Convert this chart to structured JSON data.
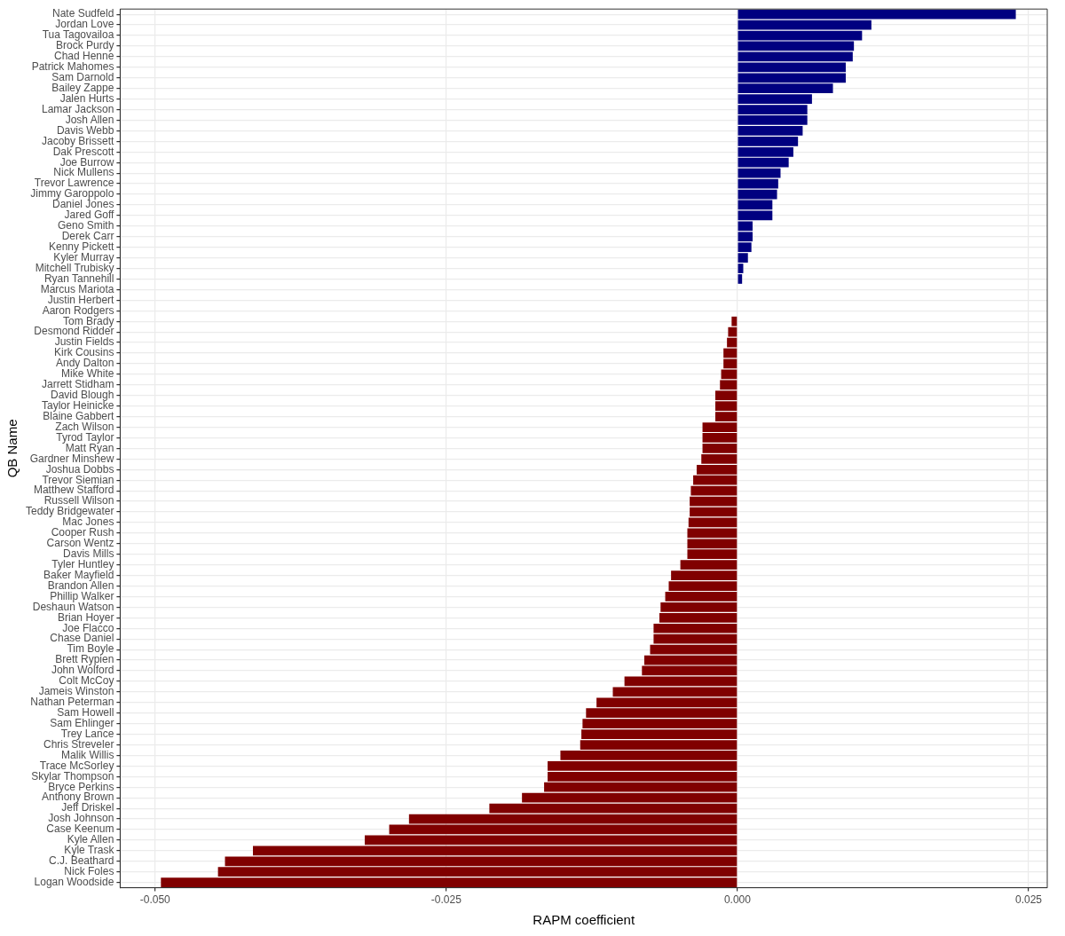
{
  "chart_data": {
    "type": "bar",
    "orientation": "horizontal",
    "xlabel": "RAPM coefficient",
    "ylabel": "QB Name",
    "categories": [
      "Nate Sudfeld",
      "Jordan Love",
      "Tua Tagovailoa",
      "Brock Purdy",
      "Chad Henne",
      "Patrick Mahomes",
      "Sam Darnold",
      "Bailey Zappe",
      "Jalen Hurts",
      "Lamar Jackson",
      "Josh Allen",
      "Davis Webb",
      "Jacoby Brissett",
      "Dak Prescott",
      "Joe Burrow",
      "Nick Mullens",
      "Trevor Lawrence",
      "Jimmy Garoppolo",
      "Daniel Jones",
      "Jared Goff",
      "Geno Smith",
      "Derek Carr",
      "Kenny Pickett",
      "Kyler Murray",
      "Mitchell Trubisky",
      "Ryan Tannehill",
      "Marcus Mariota",
      "Justin Herbert",
      "Aaron Rodgers",
      "Tom Brady",
      "Desmond Ridder",
      "Justin Fields",
      "Kirk Cousins",
      "Andy Dalton",
      "Mike White",
      "Jarrett Stidham",
      "David Blough",
      "Taylor Heinicke",
      "Blaine Gabbert",
      "Zach Wilson",
      "Tyrod Taylor",
      "Matt Ryan",
      "Gardner Minshew",
      "Joshua Dobbs",
      "Trevor Siemian",
      "Matthew Stafford",
      "Russell Wilson",
      "Teddy Bridgewater",
      "Mac Jones",
      "Cooper Rush",
      "Carson Wentz",
      "Davis Mills",
      "Tyler Huntley",
      "Baker Mayfield",
      "Brandon Allen",
      "Phillip Walker",
      "Deshaun Watson",
      "Brian Hoyer",
      "Joe Flacco",
      "Chase Daniel",
      "Tim Boyle",
      "Brett Rypien",
      "John Wolford",
      "Colt McCoy",
      "Jameis Winston",
      "Nathan Peterman",
      "Sam Howell",
      "Sam Ehlinger",
      "Trey Lance",
      "Chris Streveler",
      "Malik Willis",
      "Trace McSorley",
      "Skylar Thompson",
      "Bryce Perkins",
      "Anthony Brown",
      "Jeff Driskel",
      "Josh Johnson",
      "Case Keenum",
      "Kyle Allen",
      "Kyle Trask",
      "C.J. Beathard",
      "Nick Foles",
      "Logan Woodside"
    ],
    "values": [
      0.0239,
      0.0115,
      0.0107,
      0.01,
      0.0099,
      0.0093,
      0.0093,
      0.0082,
      0.0064,
      0.006,
      0.006,
      0.0056,
      0.0052,
      0.0048,
      0.0044,
      0.0037,
      0.0035,
      0.0034,
      0.003,
      0.003,
      0.0013,
      0.0013,
      0.0012,
      0.0009,
      0.0005,
      0.0004,
      0,
      0,
      0,
      -0.0005,
      -0.0008,
      -0.0009,
      -0.0012,
      -0.0012,
      -0.0014,
      -0.0015,
      -0.0019,
      -0.0019,
      -0.0019,
      -0.003,
      -0.003,
      -0.003,
      -0.0031,
      -0.0035,
      -0.0038,
      -0.004,
      -0.0041,
      -0.0041,
      -0.0042,
      -0.0043,
      -0.0043,
      -0.0043,
      -0.0049,
      -0.0057,
      -0.0059,
      -0.0062,
      -0.0066,
      -0.0067,
      -0.0072,
      -0.0072,
      -0.0075,
      -0.008,
      -0.0082,
      -0.0097,
      -0.0107,
      -0.0121,
      -0.013,
      -0.0133,
      -0.0134,
      -0.0135,
      -0.0152,
      -0.0163,
      -0.0163,
      -0.0166,
      -0.0185,
      -0.0213,
      -0.0282,
      -0.0299,
      -0.032,
      -0.0416,
      -0.044,
      -0.0446,
      -0.0495
    ],
    "colors": [
      "#000080",
      "#000080",
      "#000080",
      "#000080",
      "#000080",
      "#000080",
      "#000080",
      "#000080",
      "#000080",
      "#000080",
      "#000080",
      "#000080",
      "#000080",
      "#000080",
      "#000080",
      "#000080",
      "#000080",
      "#000080",
      "#000080",
      "#000080",
      "#000080",
      "#000080",
      "#000080",
      "#000080",
      "#000080",
      "#000080",
      "#800000",
      "#800000",
      "#800000",
      "#800000",
      "#800000",
      "#800000",
      "#800000",
      "#800000",
      "#800000",
      "#800000",
      "#800000",
      "#800000",
      "#800000",
      "#800000",
      "#800000",
      "#800000",
      "#800000",
      "#800000",
      "#800000",
      "#800000",
      "#800000",
      "#800000",
      "#800000",
      "#800000",
      "#800000",
      "#800000",
      "#800000",
      "#800000",
      "#800000",
      "#800000",
      "#800000",
      "#800000",
      "#800000",
      "#800000",
      "#800000",
      "#800000",
      "#800000",
      "#800000",
      "#800000",
      "#800000",
      "#800000",
      "#800000",
      "#800000",
      "#800000",
      "#800000",
      "#800000",
      "#800000",
      "#800000",
      "#800000",
      "#800000",
      "#800000",
      "#800000",
      "#800000",
      "#800000",
      "#800000",
      "#800000",
      "#800000"
    ],
    "xlim": [
      -0.053,
      0.0266
    ],
    "xticks": [
      {
        "value": -0.05,
        "label": "-0.050"
      },
      {
        "value": -0.025,
        "label": "-0.025"
      },
      {
        "value": 0,
        "label": "0.000"
      },
      {
        "value": 0.025,
        "label": "0.025"
      }
    ],
    "grid": true,
    "legend": false
  }
}
